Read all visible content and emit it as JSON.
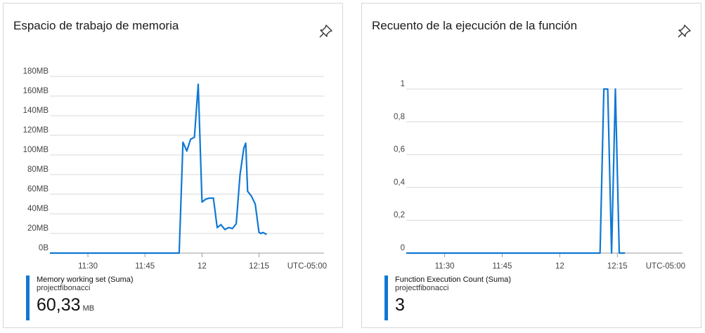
{
  "icons": {
    "pin": "pin-icon"
  },
  "colors": {
    "series": "#0f78d4",
    "grid": "#d9d9d9",
    "axis": "#9e9e9e"
  },
  "tiles": [
    {
      "title": "Espacio de trabajo de memoria",
      "legend": {
        "series": "Memory working set (Suma)",
        "resource": "projectfibonacci",
        "value": "60,33",
        "unit": "MB"
      }
    },
    {
      "title": "Recuento de la ejecución de la función",
      "legend": {
        "series": "Function Execution Count (Suma)",
        "resource": "projectfibonacci",
        "value": "3",
        "unit": ""
      }
    }
  ],
  "chart_data": [
    {
      "type": "line",
      "y_unit": "MB",
      "ylim": [
        0,
        180
      ],
      "y_ticks": [
        0,
        20,
        40,
        60,
        80,
        100,
        120,
        140,
        160,
        180
      ],
      "y_tick_labels": [
        "0B",
        "20MB",
        "40MB",
        "60MB",
        "80MB",
        "100MB",
        "120MB",
        "140MB",
        "160MB",
        "180MB"
      ],
      "x_ticks": [
        "11:30",
        "11:45",
        "12",
        "12:15"
      ],
      "x_ticks_minutes": [
        30,
        45,
        60,
        75
      ],
      "xlim_minutes": [
        20,
        81
      ],
      "timezone_label": "UTC-05:00",
      "grid": true,
      "series": [
        {
          "x_minutes": [
            20,
            30,
            40,
            50,
            54,
            55,
            56,
            57,
            58,
            59,
            60,
            61,
            62,
            63,
            64,
            65,
            66,
            67,
            68,
            69,
            70,
            71,
            71.5,
            72,
            73,
            74,
            75,
            75.5,
            76,
            77
          ],
          "values": [
            0,
            0,
            0,
            0,
            0,
            113,
            104,
            116,
            118,
            172,
            52,
            55,
            56,
            56,
            26,
            29,
            24,
            26,
            25,
            30,
            80,
            107,
            112,
            63,
            58,
            50,
            21,
            20,
            21,
            19
          ]
        }
      ]
    },
    {
      "type": "line",
      "ylim": [
        0,
        1
      ],
      "y_ticks": [
        0,
        0.2,
        0.4,
        0.6,
        0.8,
        1
      ],
      "y_tick_labels": [
        "0",
        "0,2",
        "0,4",
        "0,6",
        "0,8",
        "1"
      ],
      "x_ticks": [
        "11:30",
        "11:45",
        "12",
        "12:15"
      ],
      "x_ticks_minutes": [
        30,
        45,
        60,
        75
      ],
      "xlim_minutes": [
        20,
        81
      ],
      "timezone_label": "UTC-05:00",
      "grid": true,
      "series": [
        {
          "x_minutes": [
            20,
            40,
            70.5,
            71.5,
            72.5,
            73.5,
            74.5,
            75.5,
            77
          ],
          "values": [
            0,
            0,
            0,
            1,
            1,
            0,
            1,
            0,
            0
          ]
        }
      ]
    }
  ]
}
